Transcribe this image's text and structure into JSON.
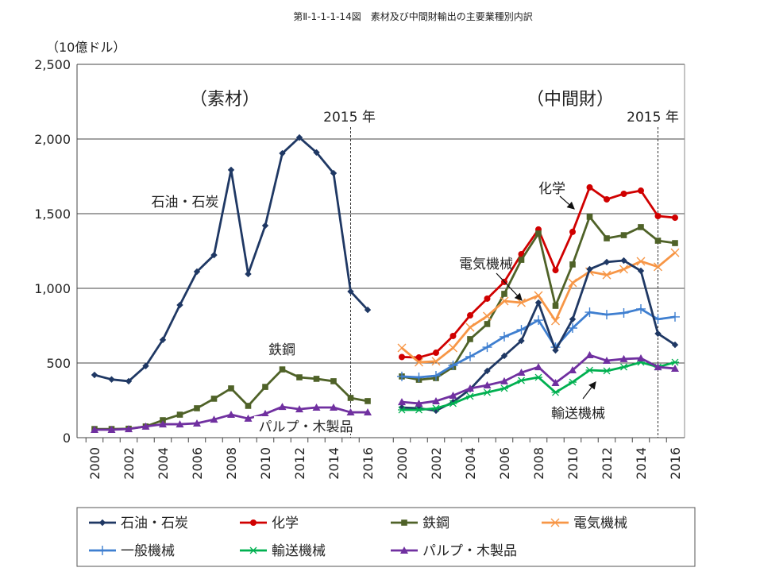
{
  "chart_data": {
    "type": "line",
    "title": "第Ⅱ-1-1-1-14図　素材及び中間財輸出の主要業種別内訳",
    "ylabel": "（10億ドル）",
    "ylim": [
      0,
      2500
    ],
    "yticks": [
      "0",
      "500",
      "1,000",
      "1,500",
      "2,000",
      "2,500"
    ],
    "ytick_values": [
      0,
      500,
      1000,
      1500,
      2000,
      2500
    ],
    "grid": true,
    "legend_position": "bottom",
    "x": [
      "2000",
      "2001",
      "2002",
      "2003",
      "2004",
      "2005",
      "2006",
      "2007",
      "2008",
      "2009",
      "2010",
      "2011",
      "2012",
      "2013",
      "2014",
      "2015",
      "2016"
    ],
    "xtick_labels": [
      "2000",
      "2002",
      "2004",
      "2006",
      "2008",
      "2010",
      "2012",
      "2014",
      "2016"
    ],
    "panels": [
      {
        "name": "（素材）",
        "marker_label": "2015 年",
        "annotations": [
          "石油・石炭",
          "鉄鋼",
          "パルプ・木製品"
        ],
        "series": [
          {
            "name": "石油・石炭",
            "color": "#1F3864",
            "marker": "diamond",
            "values": [
              420,
              390,
              378,
              480,
              655,
              888,
              1112,
              1223,
              1793,
              1096,
              1420,
              1904,
              2010,
              1910,
              1771,
              979,
              856
            ]
          },
          {
            "name": "鉄鋼",
            "color": "#4F6228",
            "marker": "square",
            "values": [
              58,
              58,
              60,
              75,
              117,
              154,
              197,
              261,
              330,
              213,
              340,
              457,
              404,
              394,
              378,
              266,
              245
            ]
          },
          {
            "name": "パルプ・木製品",
            "color": "#7030A0",
            "marker": "triangle",
            "values": [
              53,
              53,
              58,
              75,
              90,
              90,
              96,
              122,
              154,
              128,
              160,
              207,
              191,
              202,
              202,
              170,
              170
            ]
          }
        ]
      },
      {
        "name": "（中間財）",
        "marker_label": "2015 年",
        "annotations": [
          "化学",
          "電気機械",
          "輸送機械"
        ],
        "series": [
          {
            "name": "化学",
            "color": "#D00000",
            "marker": "circle",
            "values": [
              540,
              537,
              569,
              681,
              819,
              931,
              1043,
              1229,
              1394,
              1122,
              1378,
              1676,
              1596,
              1633,
              1654,
              1484,
              1473
            ]
          },
          {
            "name": "鉄鋼",
            "color": "#4F6228",
            "marker": "square",
            "values": [
              410,
              388,
              399,
              473,
              660,
              761,
              963,
              1191,
              1367,
              883,
              1160,
              1479,
              1335,
              1356,
              1410,
              1319,
              1303
            ]
          },
          {
            "name": "電気機械",
            "color": "#F79646",
            "marker": "x",
            "values": [
              601,
              505,
              511,
              601,
              739,
              814,
              915,
              904,
              952,
              782,
              1037,
              1112,
              1090,
              1128,
              1181,
              1144,
              1239
            ]
          },
          {
            "name": "一般機械",
            "color": "#3F7FD0",
            "marker": "plus",
            "values": [
              410,
              404,
              415,
              484,
              543,
              606,
              676,
              723,
              787,
              606,
              734,
              840,
              824,
              835,
              862,
              793,
              809
            ]
          },
          {
            "name": "石油・石炭",
            "color": "#1F3864",
            "marker": "diamond",
            "values": [
              202,
              197,
              181,
              239,
              324,
              447,
              548,
              649,
              904,
              585,
              793,
              1128,
              1176,
              1186,
              1117,
              697,
              622
            ]
          },
          {
            "name": "輸送機械",
            "color": "#00B050",
            "marker": "asterisk",
            "values": [
              186,
              186,
              197,
              229,
              277,
              303,
              330,
              383,
              404,
              303,
              372,
              452,
              447,
              473,
              505,
              473,
              505
            ]
          },
          {
            "name": "パルプ・木製品",
            "color": "#7030A0",
            "marker": "triangle",
            "values": [
              239,
              229,
              245,
              282,
              330,
              351,
              378,
              436,
              473,
              367,
              452,
              553,
              516,
              527,
              532,
              473,
              463
            ]
          }
        ]
      }
    ],
    "legend": [
      {
        "name": "石油・石炭",
        "color": "#1F3864",
        "marker": "diamond"
      },
      {
        "name": "化学",
        "color": "#D00000",
        "marker": "circle"
      },
      {
        "name": "鉄鋼",
        "color": "#4F6228",
        "marker": "square"
      },
      {
        "name": "電気機械",
        "color": "#F79646",
        "marker": "x"
      },
      {
        "name": "一般機械",
        "color": "#3F7FD0",
        "marker": "plus"
      },
      {
        "name": "輸送機械",
        "color": "#00B050",
        "marker": "asterisk"
      },
      {
        "name": "パルプ・木製品",
        "color": "#7030A0",
        "marker": "triangle"
      }
    ]
  }
}
